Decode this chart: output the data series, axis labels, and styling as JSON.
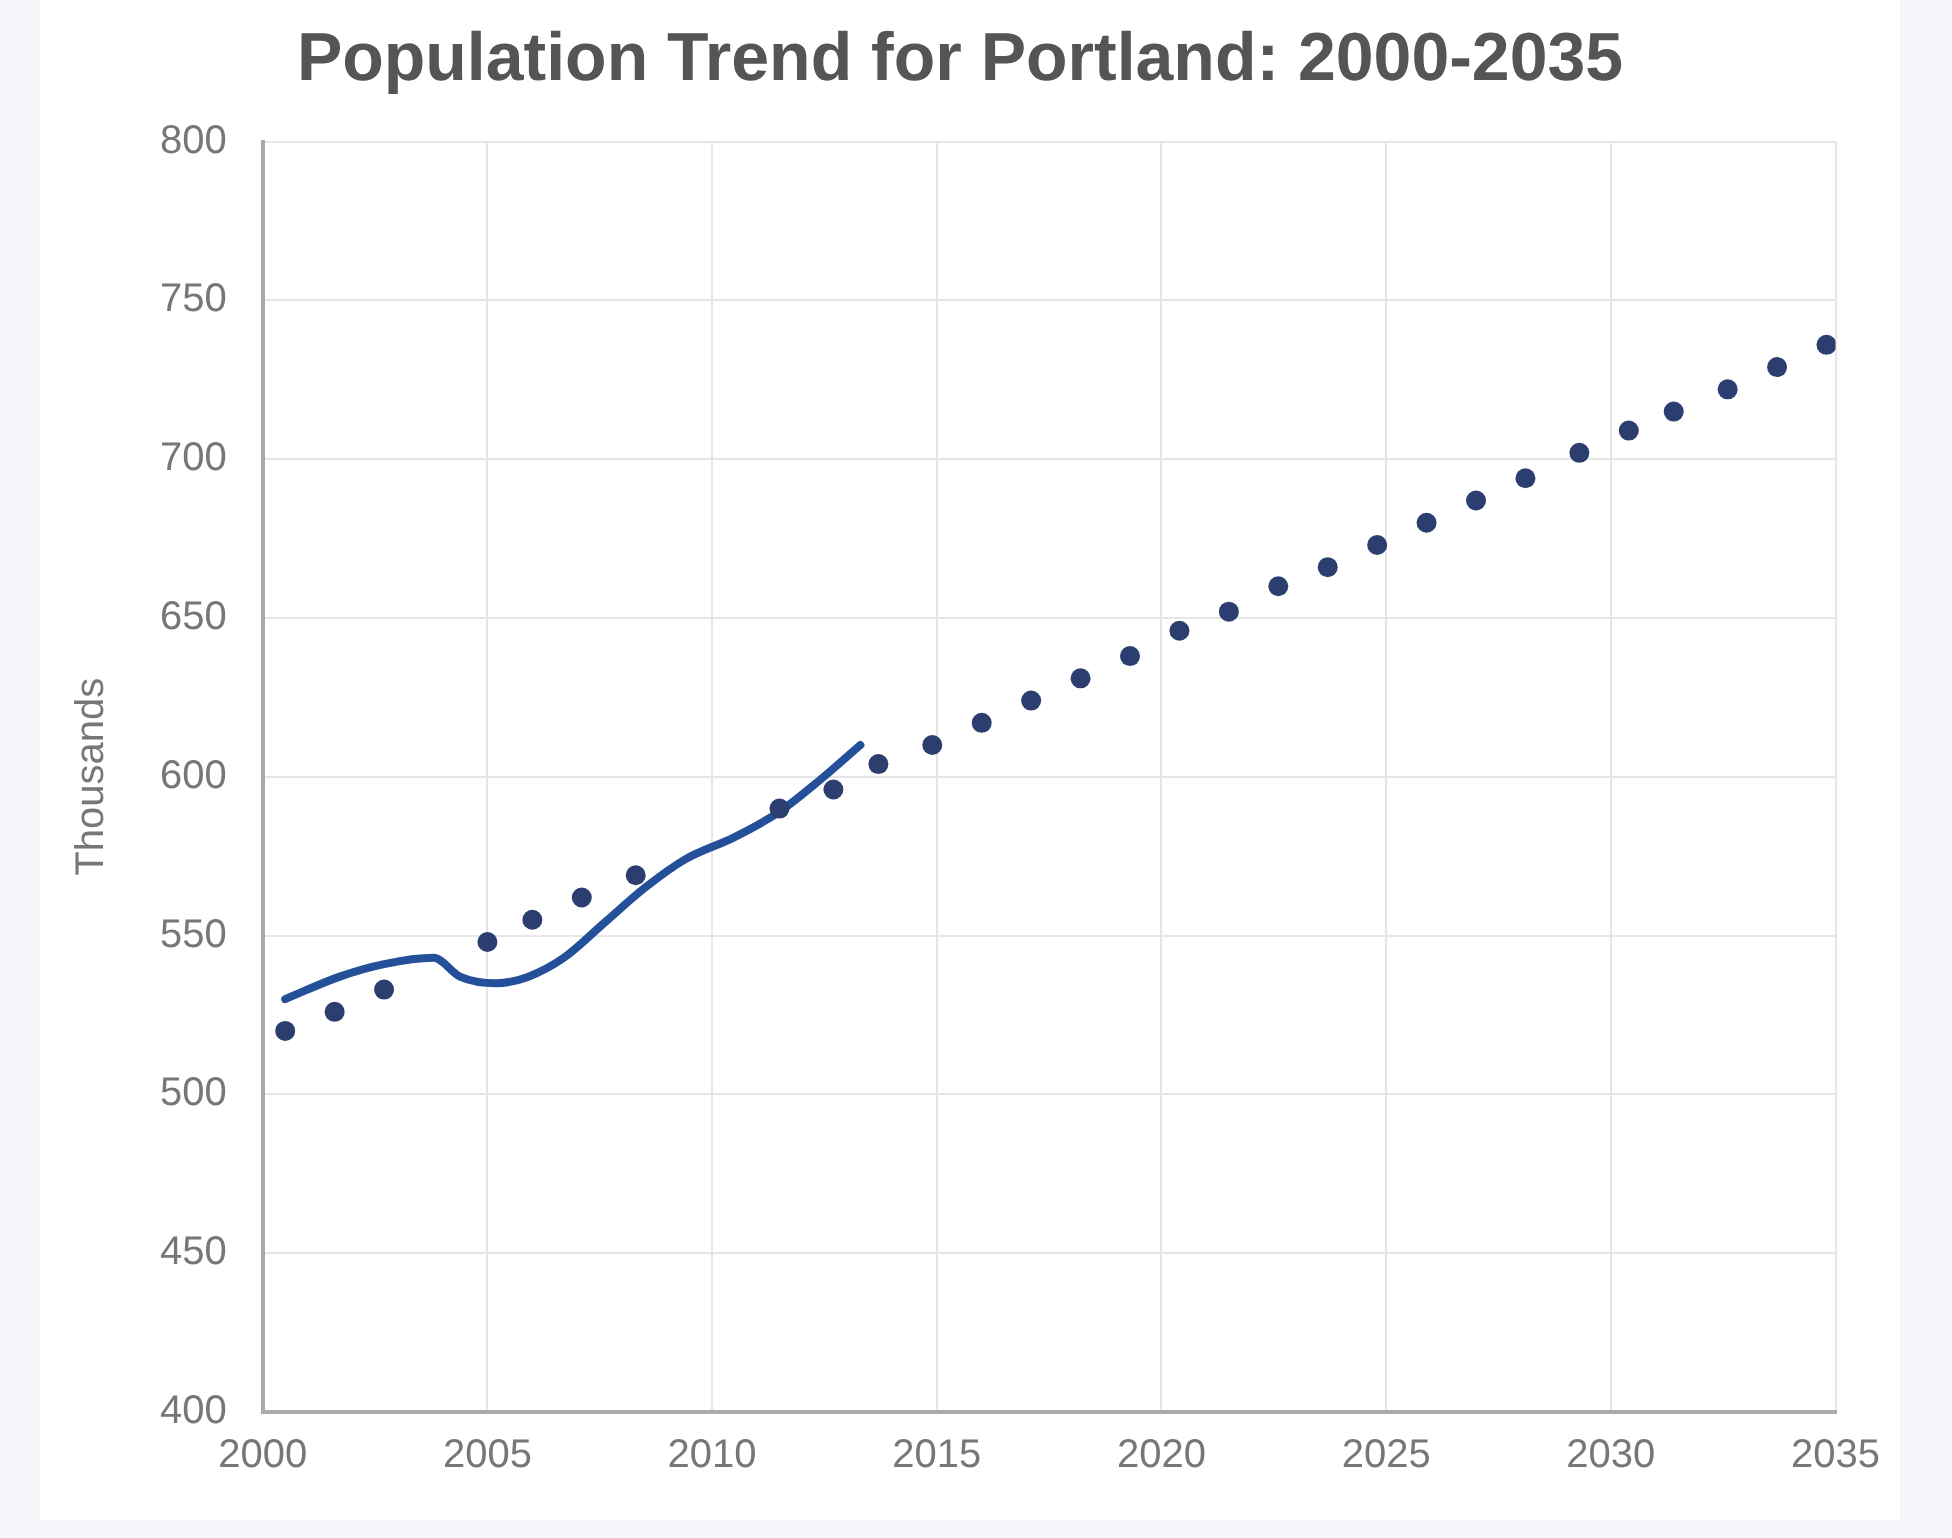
{
  "chart_data": {
    "type": "scatter",
    "title": "Population Trend for Portland: 2000-2035",
    "ylabel": "Thousands",
    "xlim": [
      2000,
      2035
    ],
    "xticks": [
      2000,
      2005,
      2010,
      2015,
      2020,
      2025,
      2030,
      2035
    ],
    "ylim": [
      400,
      800
    ],
    "yticks": [
      400,
      450,
      500,
      550,
      600,
      650,
      700,
      750,
      800
    ],
    "grid": true,
    "legend": false,
    "series": [
      {
        "type": "line",
        "color": "#24509a",
        "marker": "none",
        "x": [
          2000.5,
          2001.7,
          2002.7,
          2003.8,
          2004.4,
          2005.2,
          2005.9,
          2006.7,
          2007.6,
          2008.5,
          2009.4,
          2010.5,
          2011.5,
          2012.4,
          2013.3
        ],
        "values": [
          530,
          537,
          541,
          543,
          537,
          535,
          537,
          543,
          554,
          565,
          574,
          581,
          589,
          599,
          610
        ]
      },
      {
        "type": "scatter",
        "color": "#2c3e70",
        "marker": "circle",
        "x": [
          2000.5,
          2001.6,
          2002.7,
          2005.0,
          2006.0,
          2007.1,
          2008.3,
          2011.5,
          2012.7,
          2013.7,
          2014.9,
          2016.0,
          2017.1,
          2018.2,
          2019.3,
          2020.4,
          2021.5,
          2022.6,
          2023.7,
          2024.8,
          2025.9,
          2027.0,
          2028.1,
          2029.3,
          2030.4,
          2031.4,
          2032.6,
          2033.7,
          2034.8
        ],
        "values": [
          520,
          526,
          533,
          548,
          555,
          562,
          569,
          590,
          596,
          604,
          610,
          617,
          624,
          631,
          638,
          646,
          652,
          660,
          666,
          673,
          680,
          687,
          694,
          702,
          709,
          715,
          722,
          729,
          736
        ]
      }
    ]
  }
}
